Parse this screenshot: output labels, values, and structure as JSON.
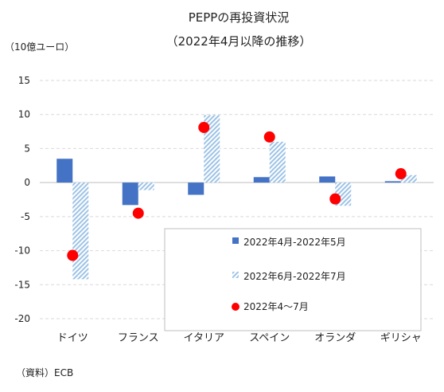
{
  "chart_data": {
    "type": "bar",
    "title": "PEPPの再投資状況",
    "subtitle": "（2022年4月以降の推移）",
    "unit_label": "（10億ユーロ）",
    "source": "（資料）ECB",
    "categories": [
      "ドイツ",
      "フランス",
      "イタリア",
      "スペイン",
      "オランダ",
      "ギリシャ"
    ],
    "ylim": [
      -20,
      15
    ],
    "yticks": [
      15,
      10,
      5,
      0,
      -5,
      -10,
      -15,
      -20
    ],
    "ytick_labels": [
      "15",
      "10",
      "5",
      "0",
      "-5",
      "-10",
      "-15",
      "-20"
    ],
    "grid": true,
    "legend_position": "bottom-right",
    "series": [
      {
        "name": "2022年4月-2022年5月",
        "kind": "bar",
        "style": "solid",
        "color": "#4472C4",
        "values": [
          3.5,
          -3.3,
          -1.8,
          0.8,
          0.9,
          0.2
        ]
      },
      {
        "name": "2022年6月-2022年7月",
        "kind": "bar",
        "style": "hatched",
        "color": "#9DC3E6",
        "values": [
          -14.2,
          -1.1,
          9.9,
          6.0,
          -3.4,
          1.1
        ]
      },
      {
        "name": "2022年4～7月",
        "kind": "marker",
        "style": "dot",
        "color": "#FF0000",
        "values": [
          -10.7,
          -4.5,
          8.1,
          6.7,
          -2.4,
          1.3
        ]
      }
    ]
  }
}
